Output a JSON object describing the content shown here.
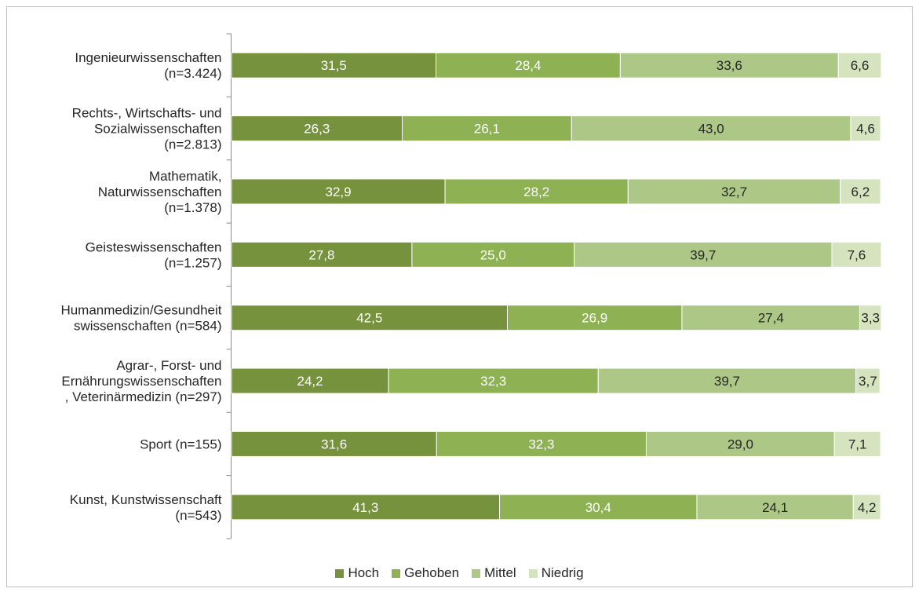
{
  "chart_data": {
    "type": "bar",
    "orientation": "horizontal",
    "stacked": true,
    "title": "",
    "xlabel": "",
    "ylabel": "",
    "xlim": [
      0,
      100
    ],
    "grid": false,
    "legend_position": "bottom",
    "categories": [
      [
        "Ingenieurwissenschaften",
        "(n=3.424)"
      ],
      [
        "Rechts-, Wirtschafts- und",
        "Sozialwissenschaften",
        "(n=2.813)"
      ],
      [
        "Mathematik,",
        "Naturwissenschaften",
        "(n=1.378)"
      ],
      [
        "Geisteswissenschaften",
        "(n=1.257)"
      ],
      [
        "Humanmedizin/Gesundheit",
        "swissenschaften (n=584)"
      ],
      [
        "Agrar-, Forst- und",
        "Ernährungswissenschaften",
        ", Veterinärmedizin (n=297)"
      ],
      [
        "Sport (n=155)"
      ],
      [
        "Kunst, Kunstwissenschaft",
        "(n=543)"
      ]
    ],
    "series": [
      {
        "name": "Hoch",
        "color": "#76923c",
        "label_color": "#ffffff",
        "values": [
          31.5,
          26.3,
          32.9,
          27.8,
          42.5,
          24.2,
          31.6,
          41.3
        ],
        "labels": [
          "31,5",
          "26,3",
          "32,9",
          "27,8",
          "42,5",
          "24,2",
          "31,6",
          "41,3"
        ]
      },
      {
        "name": "Gehoben",
        "color": "#8db153",
        "label_color": "#ffffff",
        "values": [
          28.4,
          26.1,
          28.2,
          25.0,
          26.9,
          32.3,
          32.3,
          30.4
        ],
        "labels": [
          "28,4",
          "26,1",
          "28,2",
          "25,0",
          "26,9",
          "32,3",
          "32,3",
          "30,4"
        ]
      },
      {
        "name": "Mittel",
        "color": "#adc886",
        "label_color": "#262626",
        "values": [
          33.6,
          43.0,
          32.7,
          39.7,
          27.4,
          39.7,
          29.0,
          24.1
        ],
        "labels": [
          "33,6",
          "43,0",
          "32,7",
          "39,7",
          "27,4",
          "39,7",
          "29,0",
          "24,1"
        ]
      },
      {
        "name": "Niedrig",
        "color": "#d6e3bf",
        "label_color": "#262626",
        "values": [
          6.6,
          4.6,
          6.2,
          7.6,
          3.3,
          3.7,
          7.1,
          4.2
        ],
        "labels": [
          "6,6",
          "4,6",
          "6,2",
          "7,6",
          "3,3",
          "3,7",
          "7,1",
          "4,2"
        ]
      }
    ]
  }
}
